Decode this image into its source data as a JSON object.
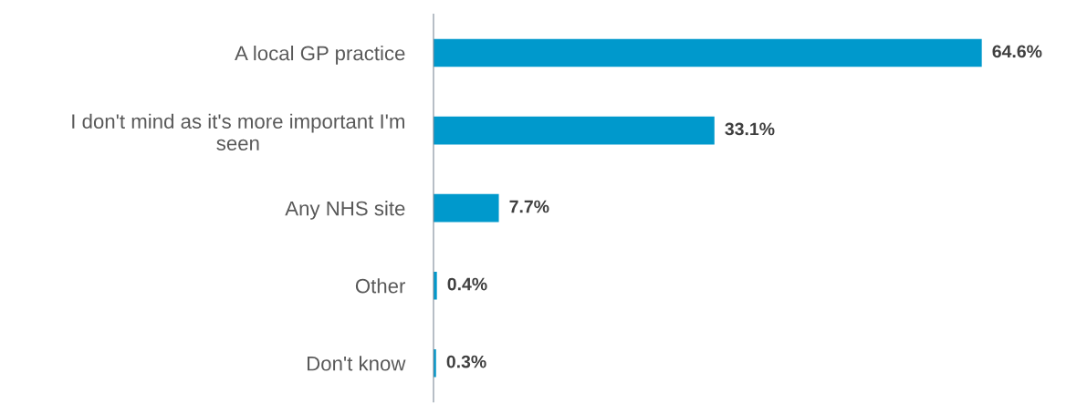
{
  "chart_data": {
    "type": "bar",
    "orientation": "horizontal",
    "categories": [
      "A local GP practice",
      "I don't mind as it's more important I'm\nseen",
      "Any NHS site",
      "Other",
      "Don't know"
    ],
    "values": [
      64.6,
      33.1,
      7.7,
      0.4,
      0.3
    ],
    "value_labels": [
      "64.6%",
      "33.1%",
      "7.7%",
      "0.4%",
      "0.3%"
    ],
    "color": "#0099cc",
    "grid": false
  }
}
